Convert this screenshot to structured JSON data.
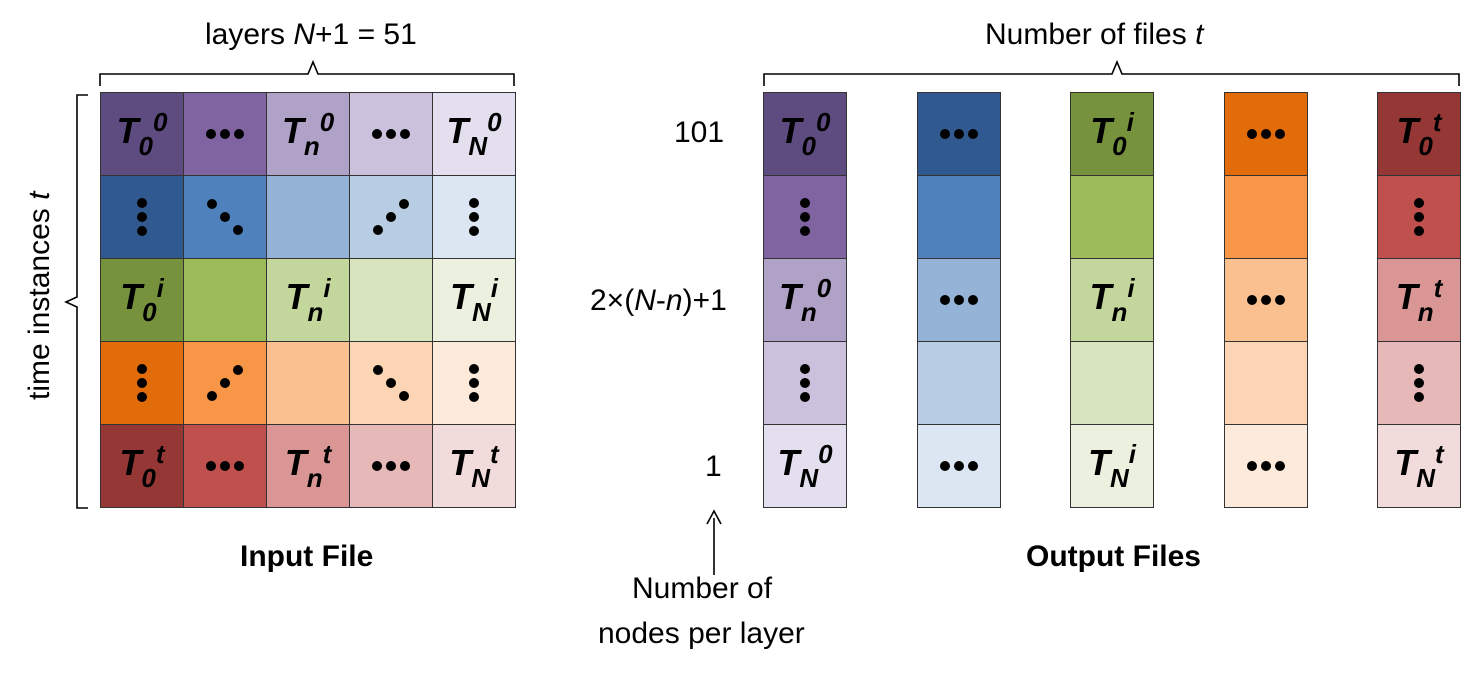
{
  "labels": {
    "layers": "layers N+1 = 51",
    "time_instances": "time instances t",
    "input_file": "Input File",
    "num_files": "Number of files t",
    "output_files": "Output Files",
    "y_top": "101",
    "y_mid": "2×(N-n)+1",
    "y_bottom": "1",
    "nodes_line1": "Number of",
    "nodes_line2": "nodes per layer"
  },
  "colors": {
    "purple": [
      "#5e4b80",
      "#8064a2",
      "#b0a2c7",
      "#cbc1dd",
      "#e4dfef"
    ],
    "blue": [
      "#305a8f",
      "#4f81bd",
      "#95b3d7",
      "#b8cce4",
      "#dce6f2"
    ],
    "green": [
      "#76923c",
      "#9bbb59",
      "#c3d69b",
      "#d7e4bd",
      "#ebf1de"
    ],
    "orange": [
      "#e36c0a",
      "#f79646",
      "#fac090",
      "#fcd5b5",
      "#fdeada"
    ],
    "red": [
      "#953735",
      "#c0504d",
      "#d99694",
      "#e6b9b8",
      "#f2dcdb"
    ]
  },
  "input_grid": [
    [
      {
        "k": "T",
        "b": "0",
        "p": "0"
      },
      {
        "k": "h"
      },
      {
        "k": "T",
        "b": "n",
        "p": "0"
      },
      {
        "k": "h"
      },
      {
        "k": "T",
        "b": "N",
        "p": "0"
      }
    ],
    [
      {
        "k": "v"
      },
      {
        "k": "dd"
      },
      {
        "k": ""
      },
      {
        "k": "du"
      },
      {
        "k": "v"
      }
    ],
    [
      {
        "k": "T",
        "b": "0",
        "p": "i"
      },
      {
        "k": ""
      },
      {
        "k": "T",
        "b": "n",
        "p": "i"
      },
      {
        "k": ""
      },
      {
        "k": "T",
        "b": "N",
        "p": "i"
      }
    ],
    [
      {
        "k": "v"
      },
      {
        "k": "du"
      },
      {
        "k": ""
      },
      {
        "k": "dd"
      },
      {
        "k": "v"
      }
    ],
    [
      {
        "k": "T",
        "b": "0",
        "p": "t"
      },
      {
        "k": "h"
      },
      {
        "k": "T",
        "b": "n",
        "p": "t"
      },
      {
        "k": "h"
      },
      {
        "k": "T",
        "b": "N",
        "p": "t"
      }
    ]
  ],
  "output_columns": [
    {
      "color": "purple",
      "cells": [
        {
          "k": "T",
          "b": "0",
          "p": "0"
        },
        {
          "k": "v"
        },
        {
          "k": "T",
          "b": "n",
          "p": "0"
        },
        {
          "k": "v"
        },
        {
          "k": "T",
          "b": "N",
          "p": "0"
        }
      ]
    },
    {
      "color": "blue",
      "cells": [
        {
          "k": "h"
        },
        {
          "k": ""
        },
        {
          "k": "h"
        },
        {
          "k": ""
        },
        {
          "k": "h"
        }
      ]
    },
    {
      "color": "green",
      "cells": [
        {
          "k": "T",
          "b": "0",
          "p": "i"
        },
        {
          "k": ""
        },
        {
          "k": "T",
          "b": "n",
          "p": "i"
        },
        {
          "k": ""
        },
        {
          "k": "T",
          "b": "N",
          "p": "i"
        }
      ]
    },
    {
      "color": "orange",
      "cells": [
        {
          "k": "h"
        },
        {
          "k": ""
        },
        {
          "k": "h"
        },
        {
          "k": ""
        },
        {
          "k": "h"
        }
      ]
    },
    {
      "color": "red",
      "cells": [
        {
          "k": "T",
          "b": "0",
          "p": "t"
        },
        {
          "k": "v"
        },
        {
          "k": "T",
          "b": "n",
          "p": "t"
        },
        {
          "k": "v"
        },
        {
          "k": "T",
          "b": "N",
          "p": "t"
        }
      ]
    }
  ],
  "row_colors": [
    "purple",
    "blue",
    "green",
    "orange",
    "red"
  ]
}
